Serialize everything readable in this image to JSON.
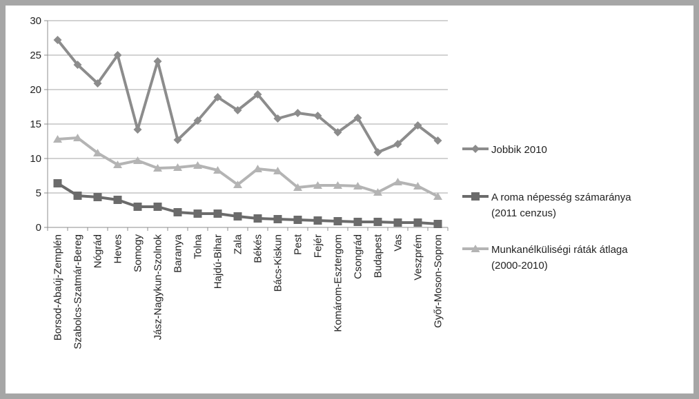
{
  "chart_data": {
    "type": "line",
    "title": "",
    "xlabel": "",
    "ylabel": "",
    "ylim": [
      0,
      30
    ],
    "yticks": [
      0,
      5,
      10,
      15,
      20,
      25,
      30
    ],
    "grid": "horizontal",
    "legend_position": "right",
    "categories": [
      "Borsod-Abaúj-Zemplén",
      "Szabolcs-Szatmár-Bereg",
      "Nógrád",
      "Heves",
      "Somogy",
      "Jász-Nagykun-Szolnok",
      "Baranya",
      "Tolna",
      "Hajdú-Bihar",
      "Zala",
      "Békés",
      "Bács-Kiskun",
      "Pest",
      "Fejér",
      "Komárom-Esztergom",
      "Csongrád",
      "Budapest",
      "Vas",
      "Veszprém",
      "Győr-Moson-Sopron"
    ],
    "series": [
      {
        "name": "Jobbik 2010",
        "legend_lines": [
          "Jobbik 2010"
        ],
        "color": "#8c8c8c",
        "marker": "diamond",
        "values": [
          27.2,
          23.6,
          20.9,
          25.0,
          14.2,
          24.1,
          12.7,
          15.5,
          18.9,
          17.0,
          19.3,
          15.8,
          16.6,
          16.2,
          13.8,
          15.9,
          10.9,
          12.1,
          14.8,
          12.6
        ]
      },
      {
        "name": "A roma népesség számaránya (2011 cenzus)",
        "legend_lines": [
          "A roma népesség számaránya",
          "(2011 cenzus)"
        ],
        "color": "#6b6b6b",
        "marker": "square",
        "values": [
          6.4,
          4.6,
          4.4,
          4.0,
          3.0,
          3.0,
          2.2,
          2.0,
          2.0,
          1.6,
          1.3,
          1.2,
          1.1,
          1.0,
          0.9,
          0.8,
          0.8,
          0.7,
          0.7,
          0.5
        ]
      },
      {
        "name": "Munkanélküliségi ráták átlaga (2000-2010)",
        "legend_lines": [
          "Munkanélküliségi ráták átlaga",
          "(2000-2010)"
        ],
        "color": "#b4b4b4",
        "marker": "triangle",
        "values": [
          12.8,
          13.0,
          10.8,
          9.1,
          9.7,
          8.6,
          8.7,
          9.0,
          8.3,
          6.2,
          8.5,
          8.2,
          5.8,
          6.1,
          6.1,
          6.0,
          5.1,
          6.6,
          6.0,
          4.5
        ]
      }
    ]
  }
}
